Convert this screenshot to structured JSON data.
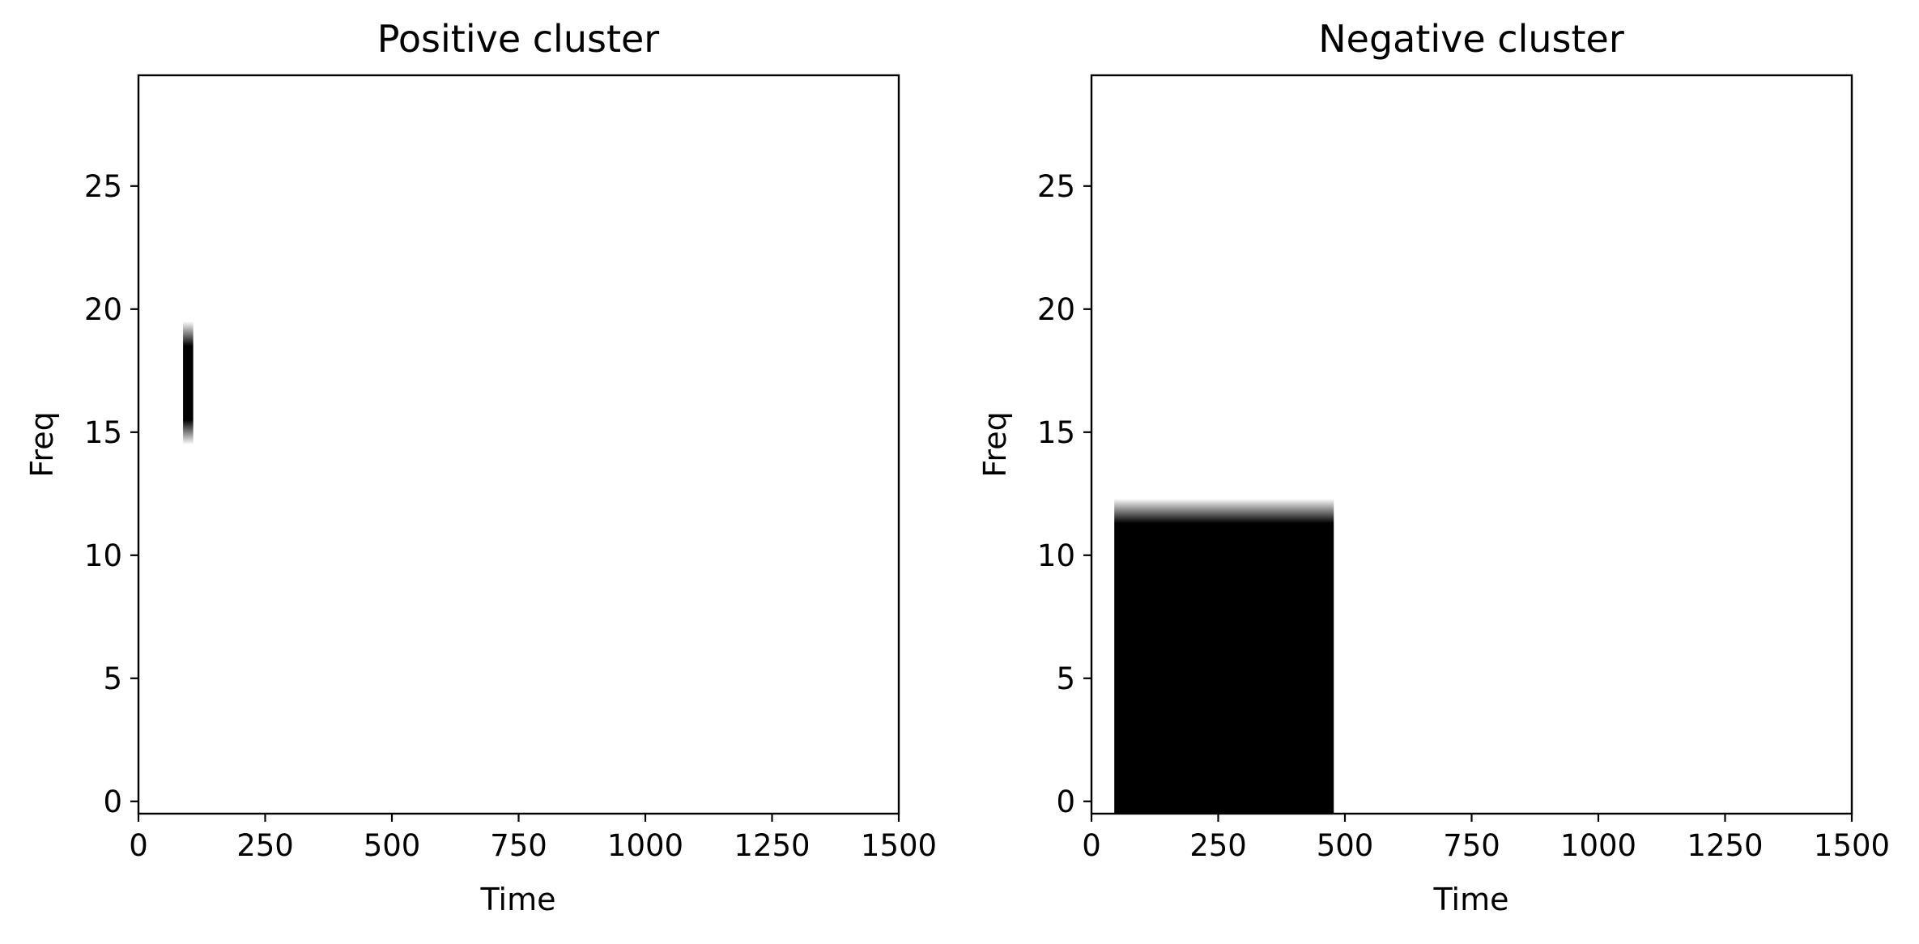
{
  "chart_data": [
    {
      "type": "heatmap",
      "title": "Positive cluster",
      "xlabel": "Time",
      "ylabel": "Freq",
      "xlim": [
        0,
        1500
      ],
      "ylim": [
        -0.5,
        29.5
      ],
      "xticks": [
        0,
        250,
        500,
        750,
        1000,
        1250,
        1500
      ],
      "yticks": [
        0,
        5,
        10,
        15,
        20,
        25
      ],
      "xtick_labels": [
        "0",
        "250",
        "500",
        "750",
        "1000",
        "1250",
        "1500"
      ],
      "ytick_labels": [
        "0",
        "5",
        "10",
        "15",
        "20",
        "25"
      ],
      "colormap": "gray_r",
      "grid": false,
      "regions": [
        {
          "t_start": 88,
          "t_end": 108,
          "freq_low": 15.5,
          "freq_high": 18.5,
          "value": 1,
          "blur_low": 1,
          "blur_high": 1
        }
      ]
    },
    {
      "type": "heatmap",
      "title": "Negative cluster",
      "xlabel": "Time",
      "ylabel": "Freq",
      "xlim": [
        0,
        1500
      ],
      "ylim": [
        -0.5,
        29.5
      ],
      "xticks": [
        0,
        250,
        500,
        750,
        1000,
        1250,
        1500
      ],
      "yticks": [
        0,
        5,
        10,
        15,
        20,
        25
      ],
      "xtick_labels": [
        "0",
        "250",
        "500",
        "750",
        "1000",
        "1250",
        "1500"
      ],
      "ytick_labels": [
        "0",
        "5",
        "10",
        "15",
        "20",
        "25"
      ],
      "colormap": "gray_r",
      "grid": false,
      "regions": [
        {
          "t_start": 45,
          "t_end": 478,
          "freq_low": -0.5,
          "freq_high": 11.3,
          "value": 1,
          "blur_low": 0,
          "blur_high": 1
        }
      ]
    }
  ]
}
